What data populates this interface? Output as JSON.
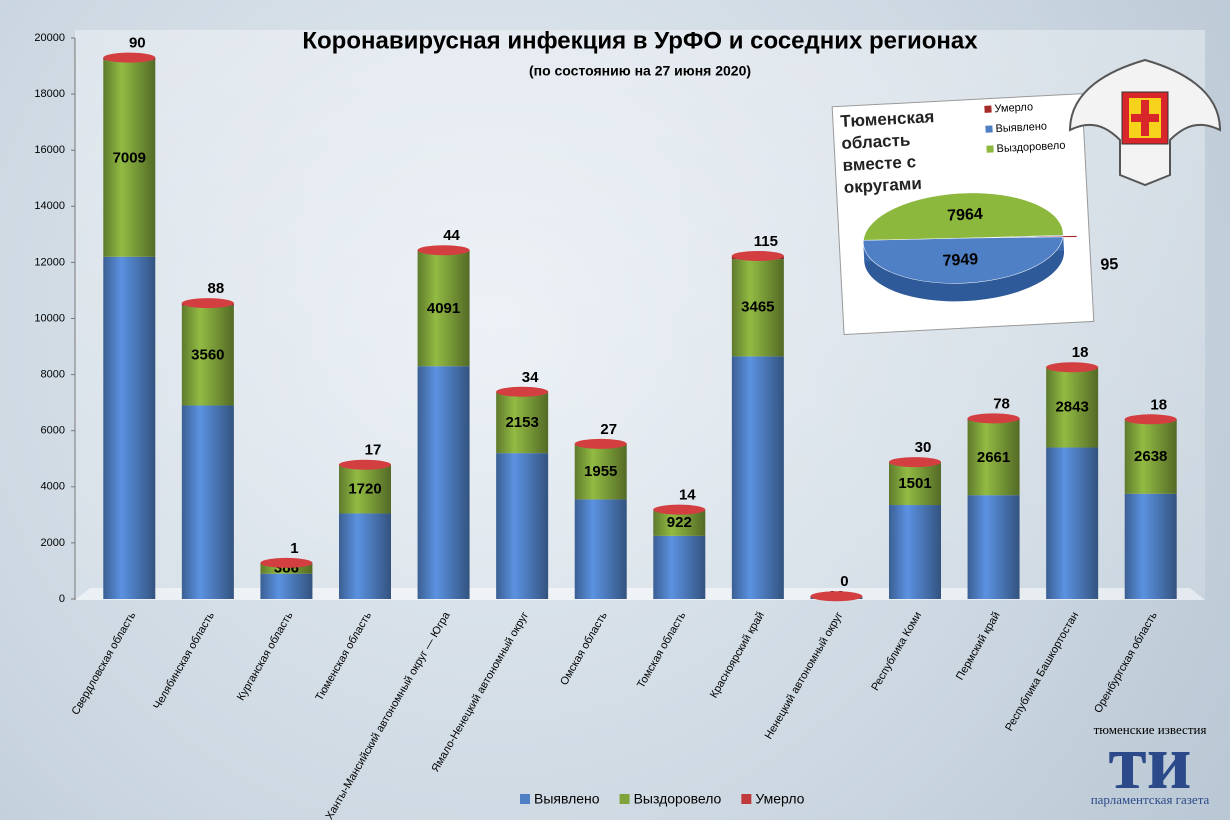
{
  "chart_data": [
    {
      "type": "bar",
      "stacked": true,
      "title": "Коронавирусная инфекция в УрФО и соседних регионах",
      "subtitle": "(по состоянию на 27 июня 2020)",
      "categories": [
        "Свердловская область",
        "Челябинская область",
        "Курганская область",
        "Тюменская область",
        "Ханты-Мансийский  автономный округ — Югра",
        "Ямало-Ненецкий автономный округ",
        "Омская область",
        "Томская область",
        "Красноярский край",
        "Ненецкий автономный округ",
        "Республика Коми",
        "Пермский край",
        "Республика Башкортостан",
        "Оренбургская область"
      ],
      "series": [
        {
          "name": "Выявлено",
          "color": "#4f7fc4",
          "labels": false,
          "values": [
            12200,
            6900,
            900,
            3050,
            8300,
            5200,
            3550,
            2250,
            8650,
            60,
            3350,
            3700,
            5400,
            3750
          ]
        },
        {
          "name": "Выздоровело",
          "color": "#7fa33a",
          "labels": true,
          "values": [
            7009,
            3560,
            386,
            1720,
            4091,
            2153,
            1955,
            922,
            3465,
            38,
            1501,
            2661,
            2843,
            2638
          ]
        },
        {
          "name": "Умерло",
          "color": "#c0393b",
          "labels": true,
          "values": [
            90,
            88,
            1,
            17,
            44,
            34,
            27,
            14,
            115,
            0,
            30,
            78,
            18,
            18
          ]
        }
      ],
      "ylim": [
        0,
        20000
      ],
      "yticks": [
        0,
        2000,
        4000,
        6000,
        8000,
        10000,
        12000,
        14000,
        16000,
        18000,
        20000
      ],
      "grid": false,
      "legend": "bottom"
    },
    {
      "type": "pie",
      "title": "Тюменская область вместе с округами",
      "categories": [
        "Умерло",
        "Выявлено",
        "Выздоровело"
      ],
      "colors": [
        "#a52a2a",
        "#4f7fc4",
        "#8db83e"
      ],
      "values": [
        95,
        7949,
        7964
      ],
      "legend": "right"
    }
  ],
  "branding": {
    "top": "тюменские известия",
    "mark": "ти",
    "bottom": "парламентская газета"
  }
}
